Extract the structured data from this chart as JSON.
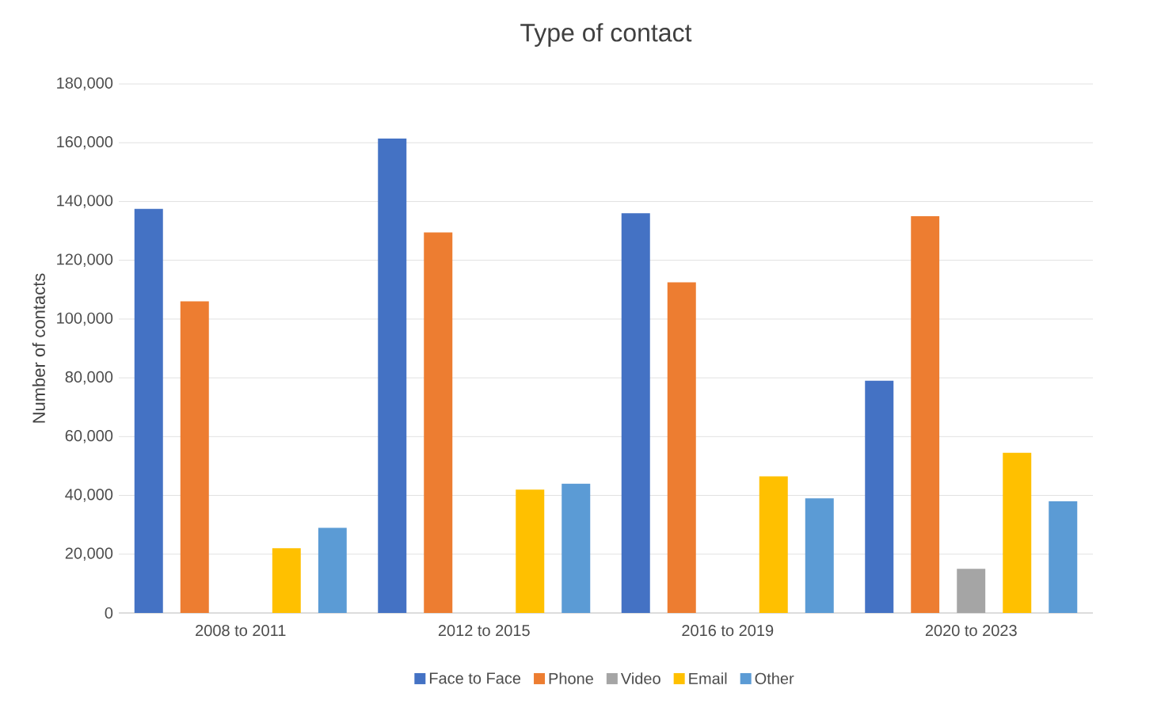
{
  "chart_data": {
    "type": "bar",
    "title": "Type of contact",
    "ylabel": "Number of contacts",
    "categories": [
      "2008 to 2011",
      "2012 to 2015",
      "2016 to 2019",
      "2020 to 2023"
    ],
    "series": [
      {
        "name": "Face to Face",
        "color": "#4472c4",
        "values": [
          137500,
          161500,
          136000,
          79000
        ]
      },
      {
        "name": "Phone",
        "color": "#ed7d31",
        "values": [
          106000,
          129500,
          112500,
          135000
        ]
      },
      {
        "name": "Video",
        "color": "#a5a5a5",
        "values": [
          null,
          null,
          null,
          15000
        ]
      },
      {
        "name": "Email",
        "color": "#ffc000",
        "values": [
          22000,
          42000,
          46500,
          54500
        ]
      },
      {
        "name": "Other",
        "color": "#5b9bd5",
        "values": [
          29000,
          44000,
          39000,
          38000
        ]
      }
    ],
    "ylim": [
      0,
      180000
    ],
    "yticks": [
      {
        "value": 0,
        "label": "0"
      },
      {
        "value": 20000,
        "label": "20,000"
      },
      {
        "value": 40000,
        "label": "40,000"
      },
      {
        "value": 60000,
        "label": "60,000"
      },
      {
        "value": 80000,
        "label": "80,000"
      },
      {
        "value": 100000,
        "label": "100,000"
      },
      {
        "value": 120000,
        "label": "120,000"
      },
      {
        "value": 140000,
        "label": "140,000"
      },
      {
        "value": 160000,
        "label": "160,000"
      },
      {
        "value": 180000,
        "label": "180,000"
      }
    ],
    "grid": "y",
    "legend": "bottom"
  }
}
